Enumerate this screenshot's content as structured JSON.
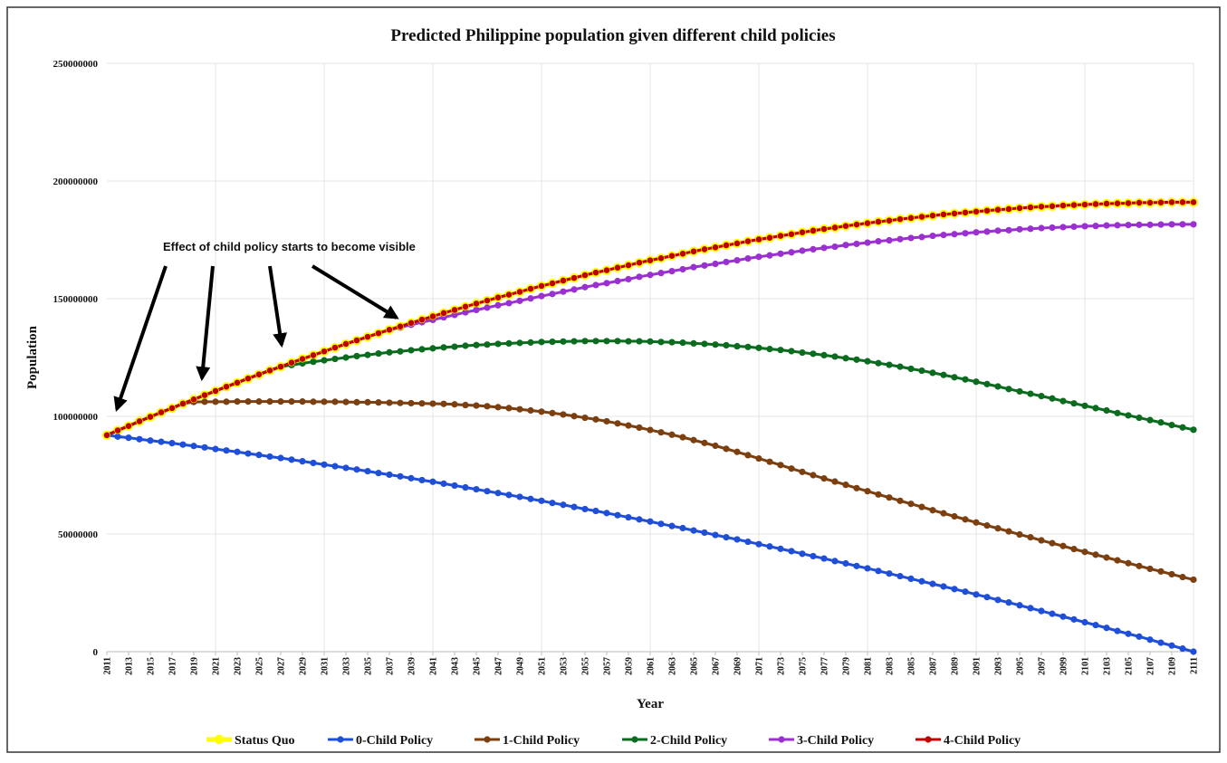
{
  "chart_data": {
    "type": "line",
    "title": "Predicted Philippine population given different child policies",
    "x_label": "Year",
    "y_label": "Population",
    "annotation": "Effect of child policy starts to become visible",
    "xlim": [
      2011,
      2111
    ],
    "ylim": [
      0,
      250000000
    ],
    "yticks": [
      0,
      50000000,
      100000000,
      150000000,
      200000000,
      250000000
    ],
    "xticks": [
      2011,
      2013,
      2015,
      2017,
      2019,
      2021,
      2023,
      2025,
      2027,
      2029,
      2031,
      2033,
      2035,
      2037,
      2039,
      2041,
      2043,
      2045,
      2047,
      2049,
      2051,
      2053,
      2055,
      2057,
      2059,
      2061,
      2063,
      2065,
      2067,
      2069,
      2071,
      2073,
      2075,
      2077,
      2079,
      2081,
      2083,
      2085,
      2087,
      2089,
      2091,
      2093,
      2095,
      2097,
      2099,
      2101,
      2103,
      2105,
      2107,
      2109,
      2111
    ],
    "grid": true,
    "legend": "bottom",
    "x": [
      2011,
      2012,
      2013,
      2014,
      2015,
      2016,
      2017,
      2018,
      2019,
      2020,
      2021,
      2022,
      2023,
      2024,
      2025,
      2026,
      2027,
      2028,
      2029,
      2030,
      2031,
      2032,
      2033,
      2034,
      2035,
      2036,
      2037,
      2038,
      2039,
      2040,
      2041,
      2042,
      2043,
      2044,
      2045,
      2046,
      2047,
      2048,
      2049,
      2050,
      2051,
      2052,
      2053,
      2054,
      2055,
      2056,
      2057,
      2058,
      2059,
      2060,
      2061,
      2062,
      2063,
      2064,
      2065,
      2066,
      2067,
      2068,
      2069,
      2070,
      2071,
      2072,
      2073,
      2074,
      2075,
      2076,
      2077,
      2078,
      2079,
      2080,
      2081,
      2082,
      2083,
      2084,
      2085,
      2086,
      2087,
      2088,
      2089,
      2090,
      2091,
      2092,
      2093,
      2094,
      2095,
      2096,
      2097,
      2098,
      2099,
      2100,
      2101,
      2102,
      2103,
      2104,
      2105,
      2106,
      2107,
      2108,
      2109,
      2110,
      2111
    ],
    "series": [
      {
        "name": "Status Quo",
        "color": "#ffff00",
        "values": [
          92000000,
          94000000,
          95900000,
          97900000,
          99800000,
          101700000,
          103500000,
          105400000,
          107200000,
          109000000,
          110800000,
          112600000,
          114300000,
          116100000,
          117800000,
          119500000,
          121100000,
          122800000,
          124400000,
          126000000,
          127600000,
          129200000,
          130800000,
          132300000,
          133800000,
          135300000,
          136800000,
          138200000,
          139700000,
          141100000,
          142500000,
          143900000,
          145200000,
          146600000,
          147900000,
          149200000,
          150500000,
          151700000,
          152900000,
          154200000,
          155400000,
          156500000,
          157700000,
          158800000,
          160000000,
          161100000,
          162100000,
          163200000,
          164200000,
          165300000,
          166300000,
          167200000,
          168200000,
          169100000,
          170100000,
          171000000,
          171800000,
          172700000,
          173500000,
          174400000,
          175200000,
          175900000,
          176700000,
          177400000,
          178200000,
          178900000,
          179600000,
          180200000,
          180900000,
          181500000,
          182100000,
          182700000,
          183200000,
          183800000,
          184300000,
          184800000,
          185300000,
          185800000,
          186200000,
          186600000,
          187000000,
          187400000,
          187800000,
          188100000,
          188500000,
          188800000,
          189100000,
          189300000,
          189600000,
          189800000,
          190000000,
          190200000,
          190400000,
          190500000,
          190600000,
          190800000,
          190800000,
          190900000,
          191000000,
          191000000,
          191000000
        ]
      },
      {
        "name": "0-Child Policy",
        "color": "#1f4fd8",
        "values": [
          92000000,
          91400000,
          90900000,
          90300000,
          89700000,
          89200000,
          88600000,
          88000000,
          87400000,
          86800000,
          86100000,
          85500000,
          84900000,
          84200000,
          83600000,
          82900000,
          82300000,
          81600000,
          80900000,
          80200000,
          79500000,
          78800000,
          78100000,
          77400000,
          76700000,
          75900000,
          75200000,
          74500000,
          73700000,
          72900000,
          72200000,
          71400000,
          70600000,
          69800000,
          69000000,
          68200000,
          67400000,
          66600000,
          65800000,
          64900000,
          64100000,
          63200000,
          62400000,
          61500000,
          60600000,
          59800000,
          58900000,
          58000000,
          57100000,
          56200000,
          55300000,
          54300000,
          53400000,
          52500000,
          51500000,
          50600000,
          49600000,
          48600000,
          47700000,
          46700000,
          45700000,
          44700000,
          43700000,
          42700000,
          41600000,
          40600000,
          39600000,
          38500000,
          37500000,
          36400000,
          35400000,
          34300000,
          33200000,
          32100000,
          31000000,
          29900000,
          28800000,
          27700000,
          26600000,
          25500000,
          24300000,
          23200000,
          22000000,
          20900000,
          19700000,
          18500000,
          17300000,
          16100000,
          14900000,
          13700000,
          12500000,
          11300000,
          10100000,
          8800000,
          7600000,
          6400000,
          5100000,
          3800000,
          2600000,
          1300000,
          0
        ]
      },
      {
        "name": "1-Child Policy",
        "color": "#7b3f10",
        "values": [
          92000000,
          94000000,
          95900000,
          97900000,
          99800000,
          101700000,
          103500000,
          105400000,
          106100000,
          106200000,
          106200000,
          106200000,
          106300000,
          106300000,
          106300000,
          106300000,
          106300000,
          106300000,
          106300000,
          106200000,
          106200000,
          106200000,
          106100000,
          106000000,
          106000000,
          105900000,
          105800000,
          105700000,
          105600000,
          105500000,
          105400000,
          105300000,
          105100000,
          104800000,
          104600000,
          104300000,
          103900000,
          103500000,
          103000000,
          102500000,
          102000000,
          101400000,
          100800000,
          100100000,
          99400000,
          98700000,
          97900000,
          97000000,
          96100000,
          95200000,
          94200000,
          93200000,
          92200000,
          91100000,
          89900000,
          88700000,
          87500000,
          86200000,
          84900000,
          83500000,
          82100000,
          80700000,
          79300000,
          77800000,
          76400000,
          75000000,
          73600000,
          72300000,
          70900000,
          69500000,
          68200000,
          66800000,
          65500000,
          64100000,
          62800000,
          61500000,
          60100000,
          58800000,
          57500000,
          56200000,
          54900000,
          53600000,
          52400000,
          51100000,
          49800000,
          48600000,
          47300000,
          46100000,
          44900000,
          43600000,
          42400000,
          41200000,
          40000000,
          38800000,
          37600000,
          36400000,
          35200000,
          34100000,
          32900000,
          31700000,
          30600000
        ]
      },
      {
        "name": "2-Child Policy",
        "color": "#0b6b1e",
        "values": [
          92000000,
          94000000,
          95900000,
          97900000,
          99800000,
          101700000,
          103500000,
          105400000,
          107200000,
          109000000,
          110800000,
          112600000,
          114300000,
          116100000,
          117800000,
          119500000,
          121100000,
          121800000,
          122500000,
          123200000,
          123800000,
          124400000,
          125000000,
          125600000,
          126100000,
          126700000,
          127200000,
          127600000,
          128100000,
          128500000,
          128900000,
          129300000,
          129600000,
          130000000,
          130300000,
          130500000,
          130800000,
          131000000,
          131200000,
          131400000,
          131600000,
          131700000,
          131800000,
          131900000,
          132000000,
          132000000,
          132000000,
          132000000,
          131900000,
          131900000,
          131800000,
          131600000,
          131500000,
          131300000,
          131000000,
          130800000,
          130500000,
          130200000,
          129800000,
          129500000,
          129100000,
          128600000,
          128200000,
          127700000,
          127100000,
          126600000,
          126000000,
          125400000,
          124700000,
          124100000,
          123400000,
          122600000,
          121900000,
          121100000,
          120200000,
          119400000,
          118500000,
          117600000,
          116600000,
          115700000,
          114700000,
          113700000,
          112700000,
          111600000,
          110600000,
          109600000,
          108600000,
          107600000,
          106500000,
          105500000,
          104500000,
          103500000,
          102500000,
          101400000,
          100400000,
          99400000,
          98400000,
          97400000,
          96300000,
          95300000,
          94300000
        ]
      },
      {
        "name": "3-Child Policy",
        "color": "#9b30d0",
        "values": [
          92000000,
          94000000,
          95900000,
          97900000,
          99800000,
          101700000,
          103500000,
          105400000,
          107200000,
          109000000,
          110800000,
          112600000,
          114300000,
          116100000,
          117800000,
          119500000,
          121100000,
          122800000,
          124400000,
          126000000,
          127600000,
          129200000,
          130800000,
          132300000,
          133800000,
          135300000,
          136800000,
          137800000,
          138900000,
          140000000,
          141000000,
          142100000,
          143100000,
          144200000,
          145200000,
          146200000,
          147200000,
          148100000,
          149100000,
          150100000,
          151100000,
          152000000,
          153000000,
          153900000,
          154900000,
          155800000,
          156600000,
          157500000,
          158300000,
          159300000,
          160100000,
          160900000,
          161700000,
          162500000,
          163400000,
          164100000,
          164800000,
          165600000,
          166300000,
          167100000,
          167800000,
          168400000,
          169100000,
          169700000,
          170400000,
          171000000,
          171600000,
          172100000,
          172800000,
          173300000,
          173800000,
          174400000,
          174800000,
          175300000,
          175800000,
          176200000,
          176700000,
          177100000,
          177400000,
          177800000,
          178200000,
          178500000,
          178900000,
          179100000,
          179500000,
          179700000,
          180000000,
          180200000,
          180400000,
          180600000,
          180800000,
          180900000,
          181100000,
          181200000,
          181300000,
          181400000,
          181400000,
          181500000,
          181600000,
          181600000,
          181600000
        ]
      },
      {
        "name": "4-Child Policy",
        "color": "#c00000",
        "values": [
          92000000,
          94000000,
          95900000,
          97900000,
          99800000,
          101700000,
          103500000,
          105400000,
          107200000,
          109000000,
          110800000,
          112600000,
          114300000,
          116100000,
          117800000,
          119500000,
          121100000,
          122800000,
          124400000,
          126000000,
          127600000,
          129200000,
          130800000,
          132300000,
          133800000,
          135300000,
          136800000,
          138200000,
          139700000,
          141100000,
          142500000,
          143900000,
          145200000,
          146600000,
          147900000,
          149200000,
          150500000,
          151700000,
          152900000,
          154200000,
          155400000,
          156500000,
          157700000,
          158800000,
          160000000,
          161100000,
          162100000,
          163200000,
          164200000,
          165300000,
          166300000,
          167200000,
          168200000,
          169100000,
          170100000,
          171000000,
          171800000,
          172700000,
          173500000,
          174400000,
          175200000,
          175900000,
          176700000,
          177400000,
          178200000,
          178900000,
          179600000,
          180200000,
          180900000,
          181500000,
          182100000,
          182700000,
          183200000,
          183800000,
          184300000,
          184800000,
          185300000,
          185800000,
          186200000,
          186600000,
          187000000,
          187400000,
          187800000,
          188100000,
          188500000,
          188800000,
          189100000,
          189300000,
          189600000,
          189800000,
          190000000,
          190200000,
          190400000,
          190500000,
          190600000,
          190800000,
          190800000,
          190900000,
          191000000,
          191000000,
          191000000
        ]
      }
    ]
  }
}
